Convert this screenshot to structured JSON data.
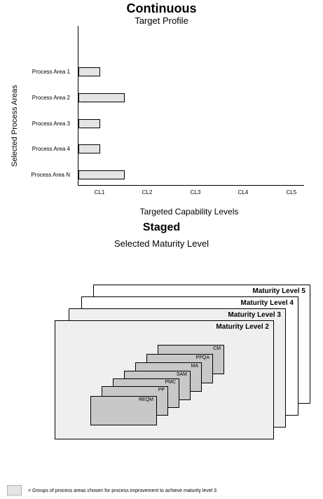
{
  "continuous": {
    "title": "Continuous",
    "subtitle": "Target Profile",
    "y_axis_label": "Selected Process Areas",
    "x_axis_label": "Targeted Capability Levels"
  },
  "chart_data": {
    "type": "bar",
    "orientation": "horizontal",
    "categories": [
      "Process Area 1",
      "Process Area 2",
      "Process Area 3",
      "Process Area 4",
      "Process Area N"
    ],
    "values": [
      1,
      2,
      1,
      1,
      2
    ],
    "x_tick_labels": [
      "CL1",
      "CL2",
      "CL3",
      "CL4",
      "CL5"
    ],
    "xlim": [
      0,
      5
    ],
    "title": "Continuous",
    "subtitle": "Target Profile",
    "xlabel": "Targeted Capability Levels",
    "ylabel": "Selected Process Areas",
    "grid": false
  },
  "staged": {
    "title": "Staged",
    "subtitle": "Selected Maturity Level",
    "maturity_levels": [
      "Maturity Level 5",
      "Maturity Level 4",
      "Maturity Level 3",
      "Maturity Level 2"
    ],
    "process_areas": [
      "CM",
      "PPQA",
      "MA",
      "SAM",
      "PMC",
      "PP",
      "REQM"
    ]
  },
  "legend": {
    "text": "= Groups of process areas chosen for process improvement to achieve maturity level 3",
    "swatch_color": "#e4e4e4"
  },
  "colors": {
    "bar_fill": "#e4e4e4",
    "level_fill": "#efefef",
    "process_area_fill": "#c8c8c8"
  }
}
